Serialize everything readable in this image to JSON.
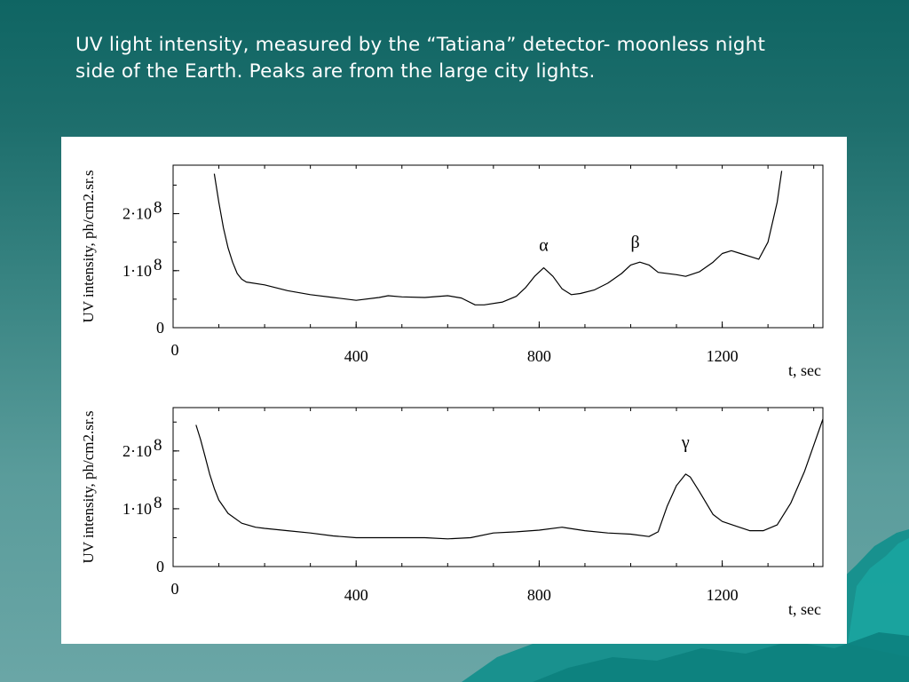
{
  "heading": {
    "line1": "UV light intensity, measured by the “Tatiana” detector- moonless night",
    "line2": "side of the Earth. Peaks are from the large city lights."
  },
  "colors": {
    "background": "#2e7b79",
    "panel": "#ffffff",
    "text": "#ffffff",
    "plot_line": "#000000"
  },
  "chart_data": [
    {
      "type": "line",
      "title": "",
      "xlabel": "t, sec",
      "ylabel": "UV intensity, ph/cm2.sr.s",
      "xlim": [
        0,
        1420
      ],
      "ylim": [
        0,
        285000000.0
      ],
      "x_ticks": [
        {
          "value": 0,
          "label": "0"
        },
        {
          "value": 400,
          "label": "400"
        },
        {
          "value": 800,
          "label": "800"
        },
        {
          "value": 1200,
          "label": "1200"
        }
      ],
      "y_ticks": [
        {
          "value": 0,
          "label": "0"
        },
        {
          "value": 100000000.0,
          "label": "1·10",
          "exp": "8"
        },
        {
          "value": 200000000.0,
          "label": "2·10",
          "exp": "8"
        }
      ],
      "annotations": [
        {
          "text": "α",
          "x": 810,
          "y": 135000000.0
        },
        {
          "text": "β",
          "x": 1010,
          "y": 140000000.0
        }
      ],
      "series": [
        {
          "x": [
            90,
            100,
            110,
            120,
            130,
            140,
            150,
            160,
            200,
            250,
            300,
            350,
            400,
            450,
            470,
            500,
            550,
            600,
            630,
            660,
            680,
            720,
            750,
            770,
            790,
            810,
            830,
            850,
            870,
            890,
            920,
            950,
            980,
            1000,
            1020,
            1040,
            1060,
            1100,
            1120,
            1150,
            1180,
            1200,
            1220,
            1240,
            1260,
            1280,
            1300,
            1320,
            1330
          ],
          "y": [
            270000000.0,
            220000000.0,
            175000000.0,
            140000000.0,
            115000000.0,
            95000000.0,
            85000000.0,
            80000000.0,
            75000000.0,
            65000000.0,
            58000000.0,
            53000000.0,
            48000000.0,
            53000000.0,
            56000000.0,
            54000000.0,
            53000000.0,
            56000000.0,
            52000000.0,
            40000000.0,
            40000000.0,
            45000000.0,
            55000000.0,
            70000000.0,
            90000000.0,
            105000000.0,
            90000000.0,
            68000000.0,
            58000000.0,
            60000000.0,
            66000000.0,
            78000000.0,
            95000000.0,
            110000000.0,
            115000000.0,
            110000000.0,
            97000000.0,
            93000000.0,
            90000000.0,
            98000000.0,
            115000000.0,
            130000000.0,
            135000000.0,
            130000000.0,
            125000000.0,
            120000000.0,
            150000000.0,
            220000000.0,
            275000000.0
          ]
        }
      ]
    },
    {
      "type": "line",
      "title": "",
      "xlabel": "t, sec",
      "ylabel": "UV intensity, ph/cm2.sr.s",
      "xlim": [
        0,
        1420
      ],
      "ylim": [
        0,
        275000000.0
      ],
      "x_ticks": [
        {
          "value": 0,
          "label": "0"
        },
        {
          "value": 400,
          "label": "400"
        },
        {
          "value": 800,
          "label": "800"
        },
        {
          "value": 1200,
          "label": "1200"
        }
      ],
      "y_ticks": [
        {
          "value": 0,
          "label": "0"
        },
        {
          "value": 100000000.0,
          "label": "1·10",
          "exp": "8"
        },
        {
          "value": 200000000.0,
          "label": "2·10",
          "exp": "8"
        }
      ],
      "annotations": [
        {
          "text": "γ",
          "x": 1120,
          "y": 205000000.0
        }
      ],
      "series": [
        {
          "x": [
            50,
            60,
            70,
            80,
            90,
            100,
            120,
            150,
            180,
            200,
            250,
            300,
            350,
            400,
            450,
            500,
            550,
            600,
            650,
            700,
            750,
            800,
            850,
            900,
            950,
            1000,
            1040,
            1060,
            1080,
            1100,
            1120,
            1130,
            1150,
            1180,
            1200,
            1230,
            1260,
            1290,
            1320,
            1350,
            1380,
            1400,
            1420
          ],
          "y": [
            245000000.0,
            220000000.0,
            190000000.0,
            160000000.0,
            135000000.0,
            115000000.0,
            92000000.0,
            75000000.0,
            68000000.0,
            66000000.0,
            62000000.0,
            58000000.0,
            53000000.0,
            50000000.0,
            50000000.0,
            50000000.0,
            50000000.0,
            48000000.0,
            50000000.0,
            58000000.0,
            60000000.0,
            63000000.0,
            68000000.0,
            62000000.0,
            58000000.0,
            56000000.0,
            52000000.0,
            60000000.0,
            105000000.0,
            140000000.0,
            160000000.0,
            155000000.0,
            130000000.0,
            90000000.0,
            78000000.0,
            70000000.0,
            62000000.0,
            62000000.0,
            72000000.0,
            110000000.0,
            165000000.0,
            210000000.0,
            255000000.0
          ]
        }
      ]
    }
  ]
}
